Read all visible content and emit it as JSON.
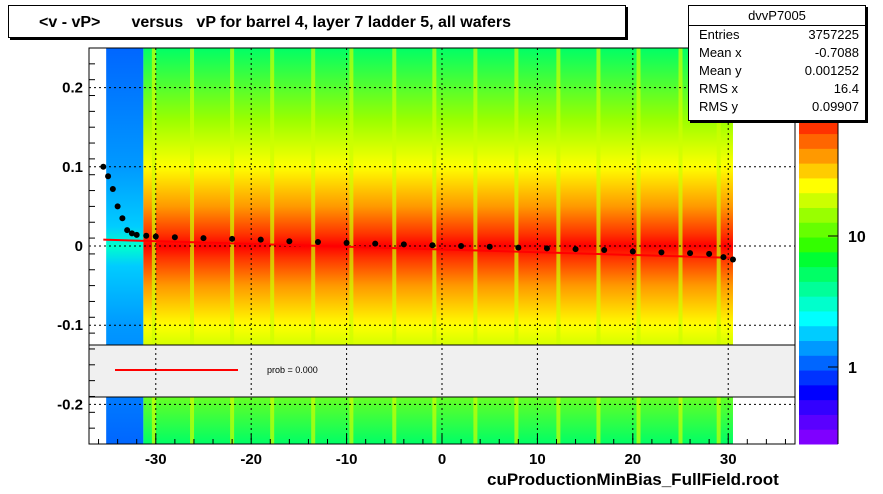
{
  "title": "<v - vP>       versus   vP for barrel 4, layer 7 ladder 5, all wafers",
  "stats": {
    "name": "dvvP7005",
    "rows": [
      {
        "key": "Entries",
        "value": "3757225"
      },
      {
        "key": "Mean x",
        "value": "-0.7088"
      },
      {
        "key": "Mean y",
        "value": "0.001252"
      },
      {
        "key": "RMS x",
        "value": "16.4"
      },
      {
        "key": "RMS y",
        "value": "0.09907"
      }
    ]
  },
  "footer": "cuProductionMinBias_FullField.root",
  "fit_legend": {
    "label": "prob = 0.000",
    "color": "#ff0000"
  },
  "colors": {
    "palette": [
      "#7f00ff",
      "#5a00ff",
      "#3300ff",
      "#0000ff",
      "#0033ff",
      "#0066ff",
      "#0099ff",
      "#00ccff",
      "#00ffff",
      "#00ffcc",
      "#00ff99",
      "#00ff66",
      "#00ff33",
      "#33ff00",
      "#66ff00",
      "#99ff00",
      "#ccff00",
      "#ffff00",
      "#ffcc00",
      "#ff9900",
      "#ff6600",
      "#ff3300",
      "#ff0000"
    ],
    "profile_points": "#000000",
    "fit_line": "#ff0000",
    "magenta_points": "#ff00ff"
  },
  "chart_data": {
    "type": "heatmap",
    "title": "<v - vP>       versus   vP for barrel 4, layer 7 ladder 5, all wafers",
    "xlabel": "",
    "ylabel": "",
    "xlim": [
      -37,
      37
    ],
    "ylim": [
      -0.25,
      0.25
    ],
    "x_ticks": [
      "-30",
      "-20",
      "-10",
      "0",
      "10",
      "20",
      "30"
    ],
    "y_ticks": [
      "-0.2",
      "-0.1",
      "0",
      "0.1",
      "0.2"
    ],
    "z_ticks": [
      "1",
      "10"
    ],
    "z_scale": "log",
    "grid": true,
    "sensor_gaps_x": [
      -30.2,
      -26.2,
      -22.0,
      -17.8,
      -13.5,
      -9.5,
      -5.0,
      -0.8,
      3.5,
      7.8,
      12.2,
      16.4,
      20.6,
      25.0,
      29.0
    ],
    "profile": {
      "name": "mean",
      "x": [
        -35.5,
        -35.0,
        -34.5,
        -34.0,
        -33.5,
        -33.0,
        -32.5,
        -32.0,
        -31.0,
        -30.0,
        -28.0,
        -25.0,
        -22.0,
        -19.0,
        -16.0,
        -13.0,
        -10.0,
        -7.0,
        -4.0,
        -1.0,
        2.0,
        5.0,
        8.0,
        11.0,
        14.0,
        17.0,
        20.0,
        23.0,
        26.0,
        28.0,
        29.5,
        30.5
      ],
      "y": [
        0.1,
        0.088,
        0.072,
        0.05,
        0.035,
        0.02,
        0.016,
        0.014,
        0.013,
        0.012,
        0.011,
        0.01,
        0.009,
        0.008,
        0.006,
        0.005,
        0.004,
        0.003,
        0.002,
        0.001,
        0.0,
        -0.001,
        -0.002,
        -0.003,
        -0.004,
        -0.005,
        -0.007,
        -0.008,
        -0.009,
        -0.01,
        -0.014,
        -0.017
      ]
    },
    "fit": {
      "x": [
        -35.5,
        30.5
      ],
      "y": [
        0.008,
        -0.015
      ]
    }
  }
}
